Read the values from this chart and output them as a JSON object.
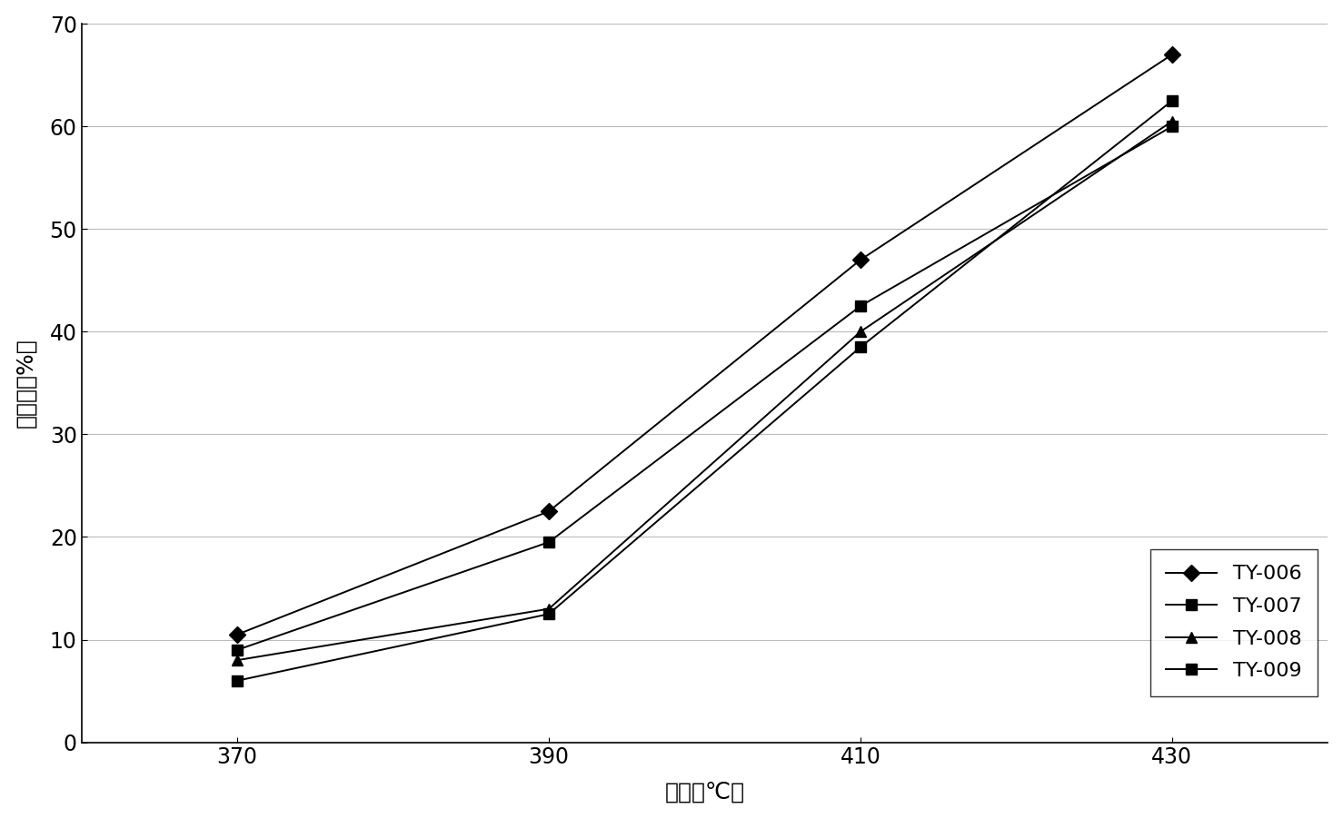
{
  "x": [
    370,
    390,
    410,
    430
  ],
  "series": {
    "TY-006": [
      10.5,
      22.5,
      47.0,
      67.0
    ],
    "TY-007": [
      9.0,
      19.5,
      42.5,
      60.0
    ],
    "TY-008": [
      8.0,
      13.0,
      40.0,
      60.5
    ],
    "TY-009": [
      6.0,
      12.5,
      38.5,
      62.5
    ]
  },
  "markers": {
    "TY-006": "D",
    "TY-007": "s",
    "TY-008": "^",
    "TY-009": "s"
  },
  "marker_colors": {
    "TY-006": "#000000",
    "TY-007": "#000000",
    "TY-008": "#000000",
    "TY-009": "#000000"
  },
  "line_color": "#000000",
  "marker_sizes": {
    "TY-006": 9,
    "TY-007": 9,
    "TY-008": 9,
    "TY-009": 9
  },
  "ylabel": "转化率（%）",
  "xlabel": "温度（℃）",
  "ylim": [
    0,
    70
  ],
  "xlim": [
    360,
    440
  ],
  "yticks": [
    0,
    10,
    20,
    30,
    40,
    50,
    60,
    70
  ],
  "xticks": [
    370,
    390,
    410,
    430
  ],
  "grid_color": "#bbbbbb",
  "background_color": "#ffffff",
  "legend_fontsize": 16,
  "axis_fontsize": 18,
  "tick_fontsize": 17,
  "figwidth": 14.78,
  "figheight": 9.01,
  "dpi": 100
}
